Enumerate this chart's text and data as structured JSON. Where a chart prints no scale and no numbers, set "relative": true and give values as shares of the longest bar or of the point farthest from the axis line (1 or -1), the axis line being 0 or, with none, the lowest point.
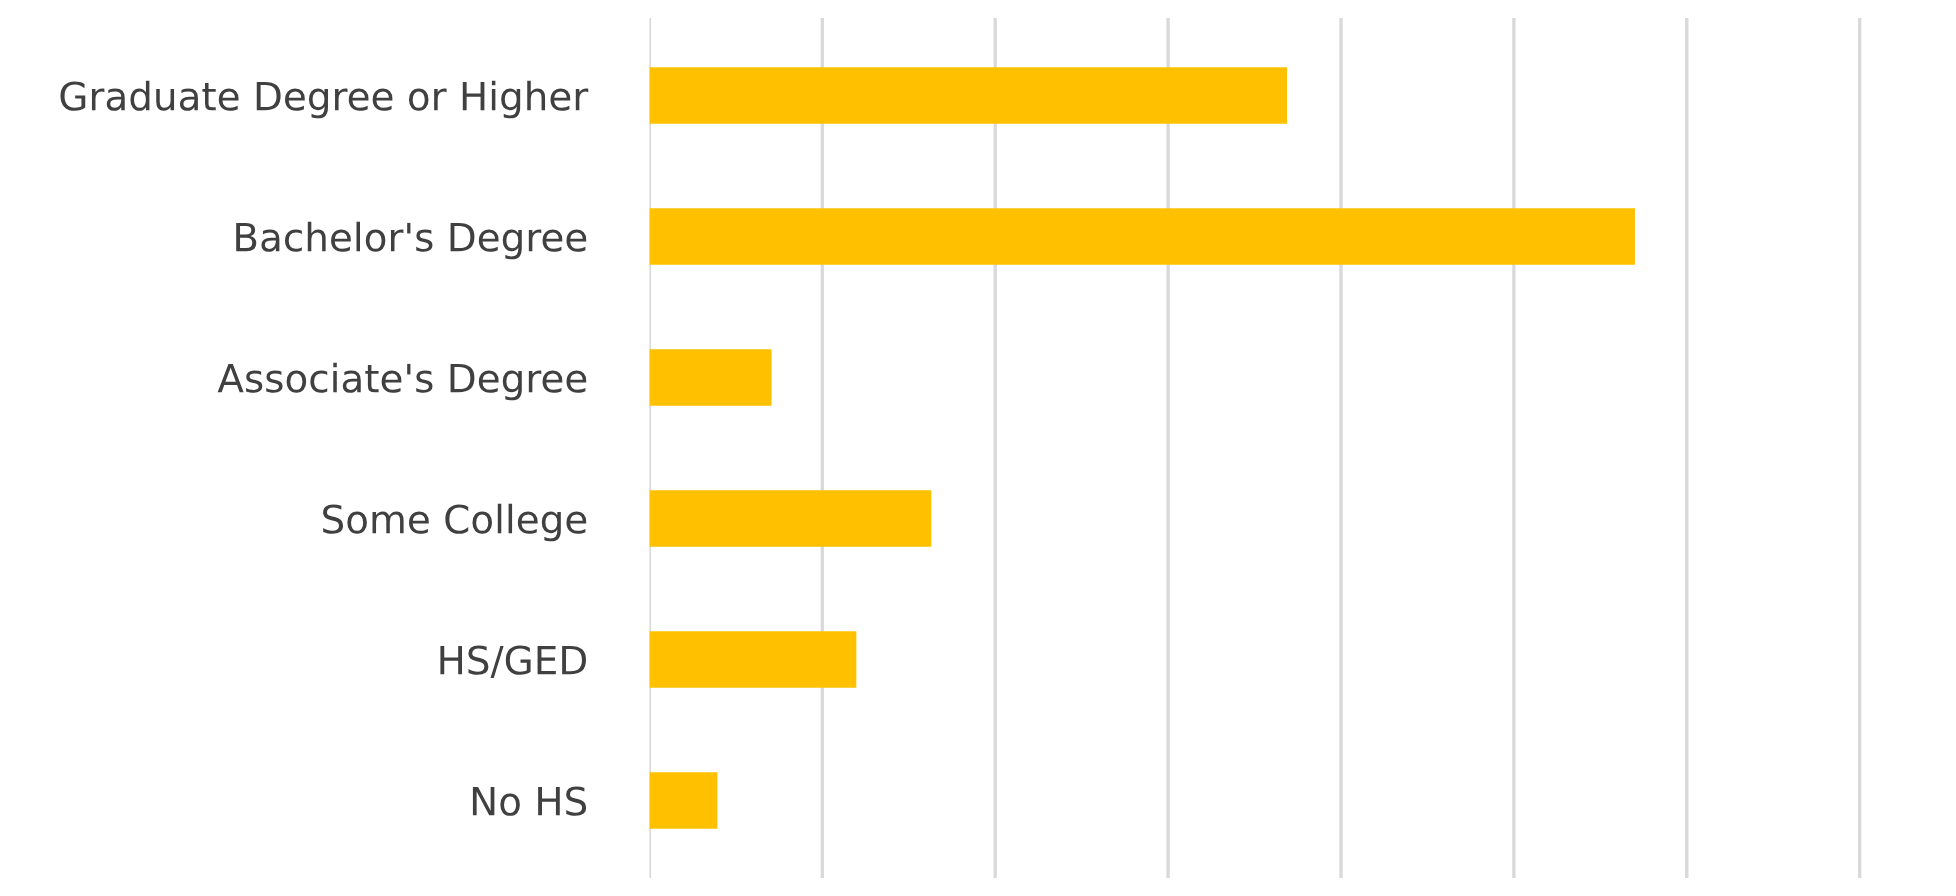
{
  "chart_data": {
    "type": "bar",
    "orientation": "horizontal",
    "relative": true,
    "categories": [
      "Graduate Degree or Higher",
      "Bachelor's Degree",
      "Associate's Degree",
      "Some College",
      "HS/GED",
      "No HS"
    ],
    "values": [
      0.647,
      1,
      0.124,
      0.286,
      0.21,
      0.069
    ],
    "color": "#ffc000",
    "grid": "x",
    "legend": false
  }
}
